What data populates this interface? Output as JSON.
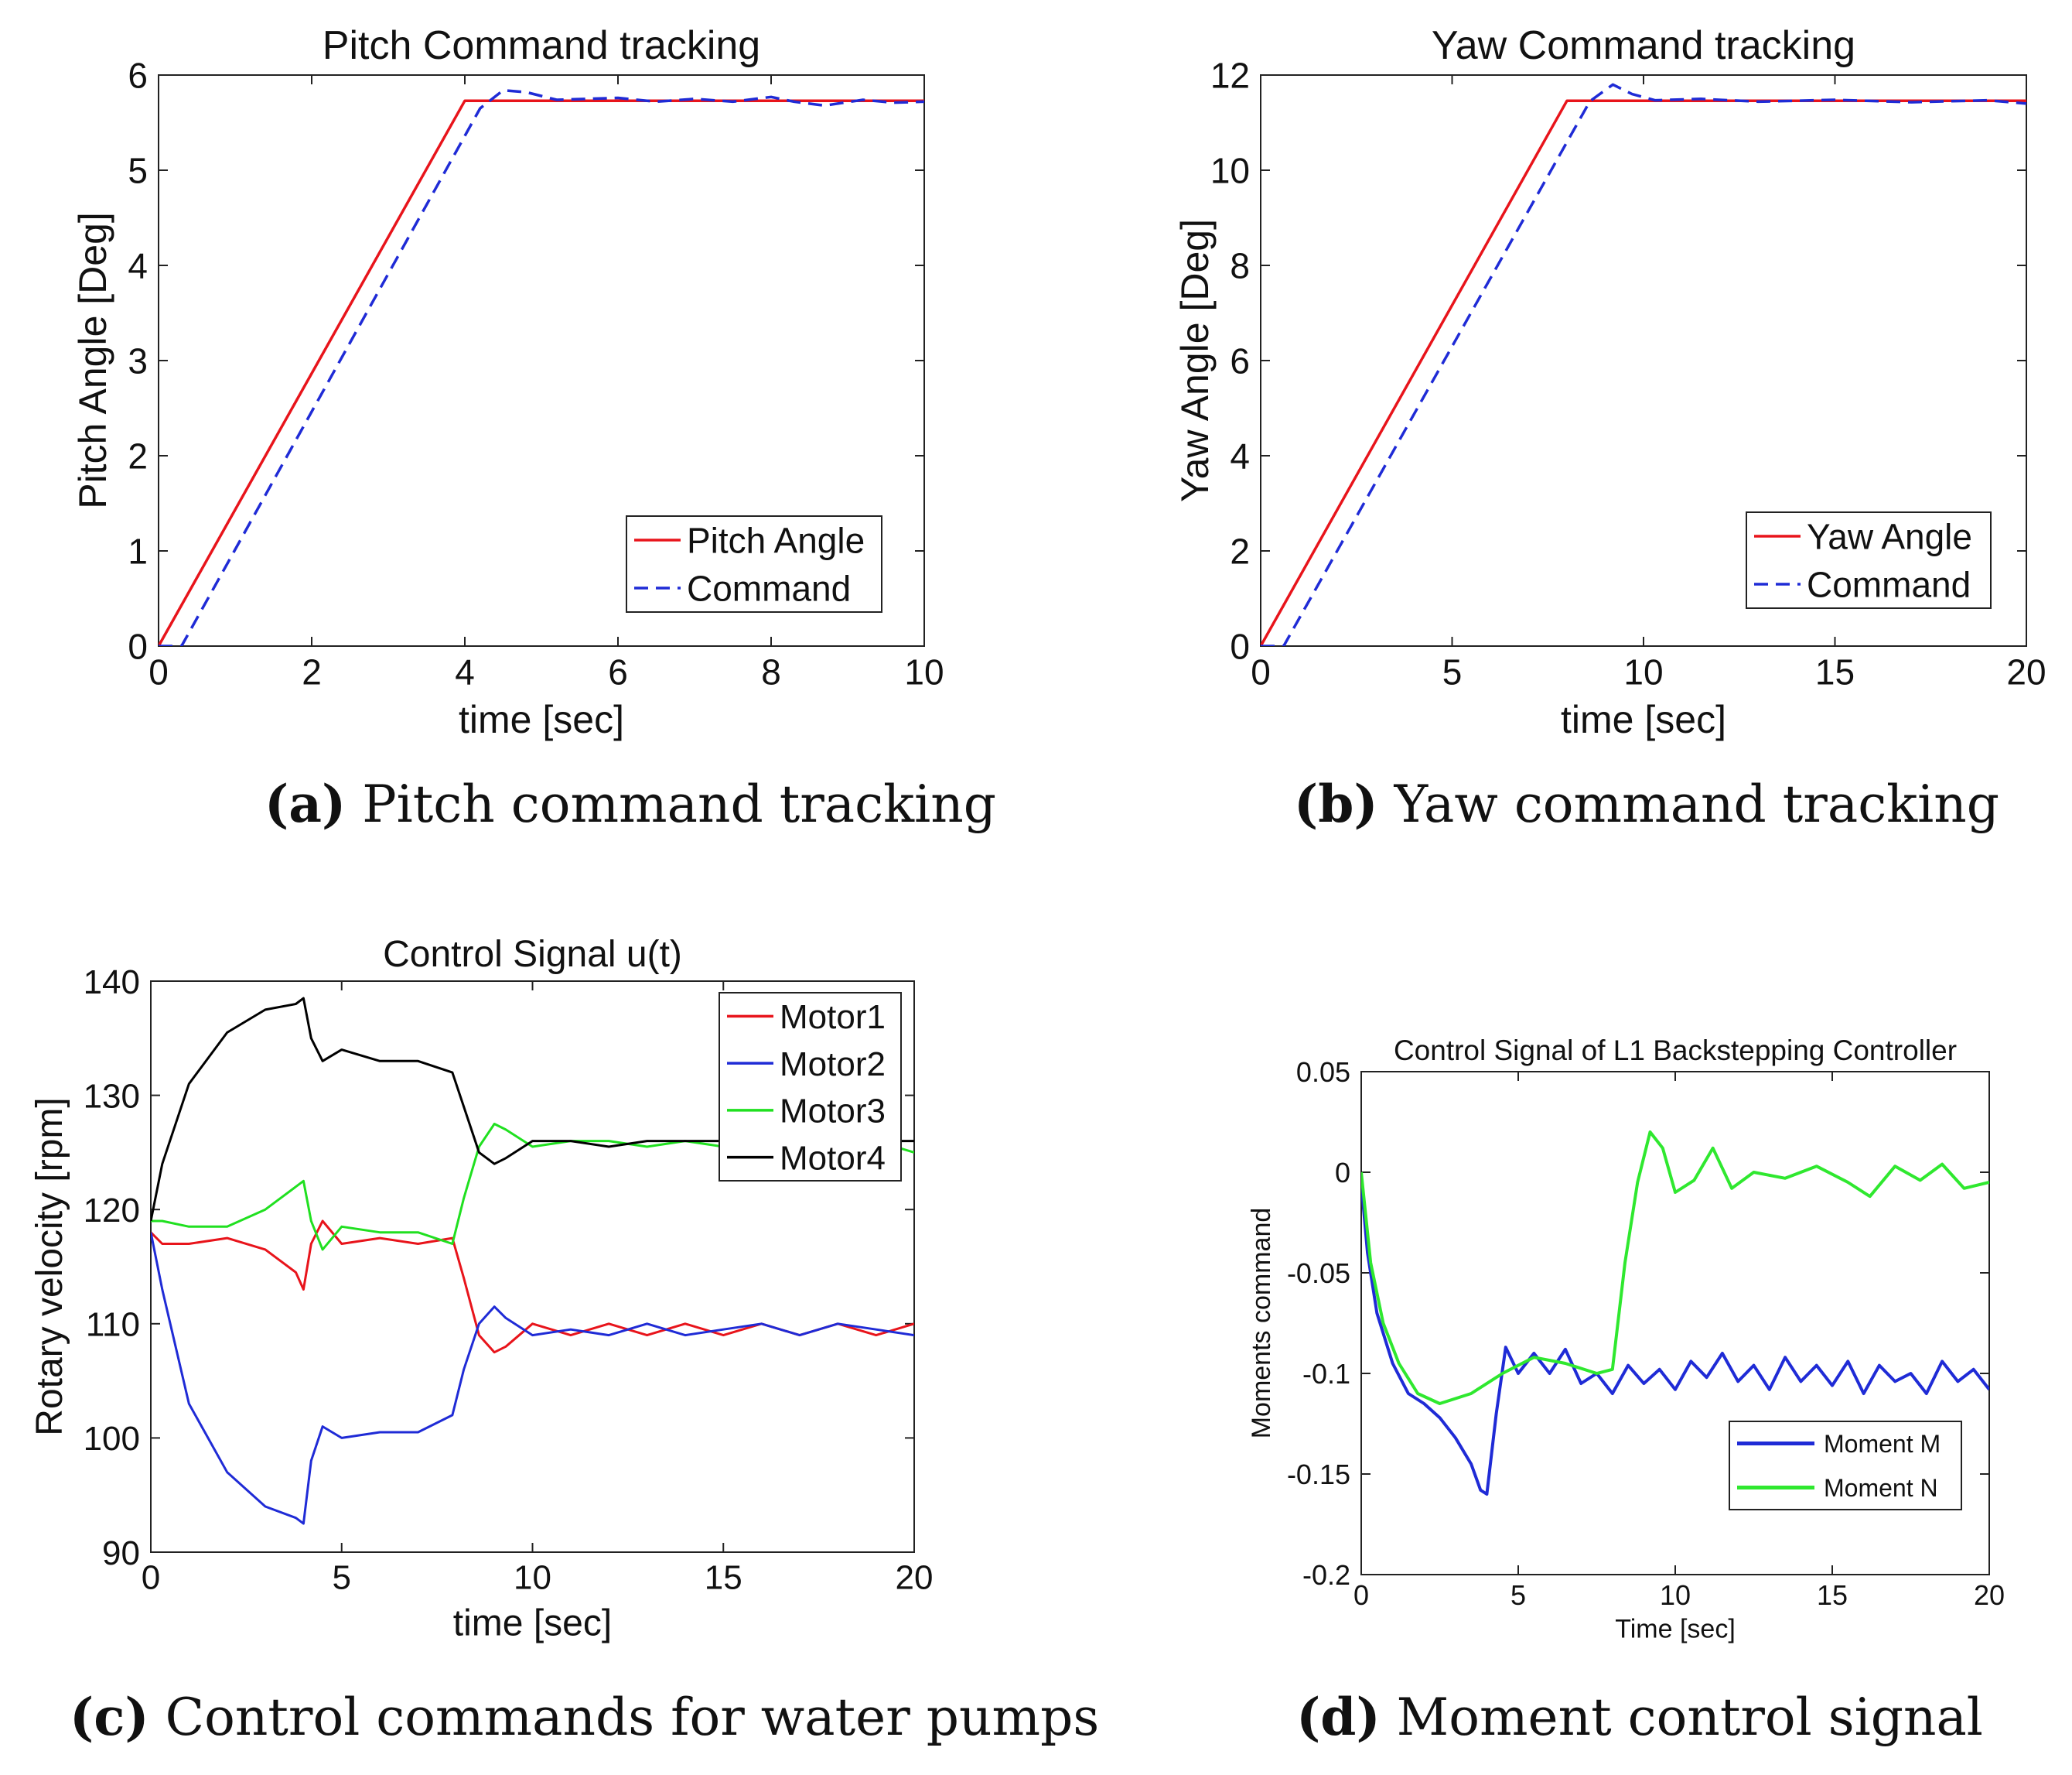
{
  "chart_data": [
    {
      "id": "a",
      "type": "line",
      "title": "Pitch Command tracking",
      "xlabel": "time [sec]",
      "ylabel": "Pitch Angle [Deg]",
      "xlim": [
        0,
        10
      ],
      "ylim": [
        0,
        6
      ],
      "xticks": [
        0,
        2,
        4,
        6,
        8,
        10
      ],
      "yticks": [
        0,
        1,
        2,
        3,
        4,
        5,
        6
      ],
      "xtick_labels": [
        "0",
        "2",
        "4",
        "6",
        "8",
        "10"
      ],
      "ytick_labels": [
        "0",
        "1",
        "2",
        "3",
        "4",
        "5",
        "6"
      ],
      "grid": false,
      "legend": "bottom-right",
      "caption_label": "(a)",
      "caption_text": "Pitch command tracking",
      "series": [
        {
          "name": "Pitch Angle",
          "color": "#e8141b",
          "style": "solid",
          "width": 3.5,
          "x": [
            0,
            4,
            10
          ],
          "y": [
            0,
            5.73,
            5.73
          ]
        },
        {
          "name": "Command",
          "color": "#1f2bd6",
          "style": "dashed",
          "width": 3.5,
          "x": [
            0,
            0.3,
            4.2,
            4.5,
            4.8,
            5.2,
            6.0,
            6.5,
            7.0,
            7.5,
            8.0,
            8.3,
            8.7,
            9.2,
            9.6,
            10.0
          ],
          "y": [
            0,
            0,
            5.65,
            5.84,
            5.82,
            5.74,
            5.76,
            5.72,
            5.75,
            5.72,
            5.77,
            5.72,
            5.68,
            5.74,
            5.71,
            5.72
          ]
        }
      ]
    },
    {
      "id": "b",
      "type": "line",
      "title": "Yaw Command tracking",
      "xlabel": "time [sec]",
      "ylabel": "Yaw Angle [Deg]",
      "xlim": [
        0,
        20
      ],
      "ylim": [
        0,
        12
      ],
      "xticks": [
        0,
        5,
        10,
        15,
        20
      ],
      "yticks": [
        0,
        2,
        4,
        6,
        8,
        10,
        12
      ],
      "xtick_labels": [
        "0",
        "5",
        "10",
        "15",
        "20"
      ],
      "ytick_labels": [
        "0",
        "2",
        "4",
        "6",
        "8",
        "10",
        "12"
      ],
      "grid": false,
      "legend": "bottom-right",
      "caption_label": "(b)",
      "caption_text": "Yaw command tracking",
      "series": [
        {
          "name": "Yaw Angle",
          "color": "#e8141b",
          "style": "solid",
          "width": 3.5,
          "x": [
            0,
            8,
            20
          ],
          "y": [
            0,
            11.46,
            11.46
          ]
        },
        {
          "name": "Command",
          "color": "#1f2bd6",
          "style": "dashed",
          "width": 3.5,
          "x": [
            0,
            0.6,
            8.6,
            9.2,
            9.7,
            10.3,
            11.5,
            13.0,
            15.0,
            17.0,
            19.0,
            20.0
          ],
          "y": [
            0,
            0,
            11.45,
            11.8,
            11.6,
            11.47,
            11.5,
            11.44,
            11.48,
            11.43,
            11.47,
            11.4
          ]
        }
      ]
    },
    {
      "id": "c",
      "type": "line",
      "title": "Control Signal u(t)",
      "xlabel": "time [sec]",
      "ylabel": "Rotary velocity [rpm]",
      "xlim": [
        0,
        20
      ],
      "ylim": [
        90,
        140
      ],
      "xticks": [
        0,
        5,
        10,
        15,
        20
      ],
      "yticks": [
        90,
        100,
        110,
        120,
        130,
        140
      ],
      "xtick_labels": [
        "0",
        "5",
        "10",
        "15",
        "20"
      ],
      "ytick_labels": [
        "90",
        "100",
        "110",
        "120",
        "130",
        "140"
      ],
      "grid": false,
      "legend": "top-right",
      "caption_label": "(c)",
      "caption_text": "Control commands for water pumps",
      "series": [
        {
          "name": "Motor1",
          "color": "#e8141b",
          "style": "solid",
          "width": 3,
          "x": [
            0,
            0.3,
            1,
            2,
            3,
            3.8,
            4.0,
            4.2,
            4.5,
            5,
            6,
            7,
            7.9,
            8.2,
            8.6,
            9.0,
            9.3,
            10,
            11,
            12,
            13,
            14,
            15,
            16,
            17,
            18,
            19,
            20
          ],
          "y": [
            118,
            117,
            117,
            117.5,
            116.5,
            114.5,
            113,
            117,
            119,
            117,
            117.5,
            117,
            117.5,
            114,
            109,
            107.5,
            108,
            110,
            109,
            110,
            109,
            110,
            109,
            110,
            109,
            110,
            109,
            110
          ]
        },
        {
          "name": "Motor2",
          "color": "#1f2bd6",
          "style": "solid",
          "width": 3,
          "x": [
            0,
            0.3,
            1,
            2,
            3,
            3.8,
            4.0,
            4.2,
            4.5,
            5,
            6,
            7,
            7.9,
            8.2,
            8.6,
            9.0,
            9.3,
            10,
            11,
            12,
            13,
            14,
            15,
            16,
            17,
            18,
            19,
            20
          ],
          "y": [
            118,
            113,
            103,
            97,
            94,
            93,
            92.5,
            98,
            101,
            100,
            100.5,
            100.5,
            102,
            106,
            110,
            111.5,
            110.5,
            109,
            109.5,
            109,
            110,
            109,
            109.5,
            110,
            109,
            110,
            109.5,
            109
          ]
        },
        {
          "name": "Motor3",
          "color": "#20e020",
          "style": "solid",
          "width": 3,
          "x": [
            0,
            0.3,
            1,
            2,
            3,
            3.8,
            4.0,
            4.2,
            4.5,
            5,
            6,
            7,
            7.9,
            8.2,
            8.6,
            9.0,
            9.3,
            10,
            11,
            12,
            13,
            14,
            15,
            16,
            17,
            18,
            19,
            20
          ],
          "y": [
            119,
            119,
            118.5,
            118.5,
            120,
            122,
            122.5,
            119,
            116.5,
            118.5,
            118,
            118,
            117,
            121,
            125.5,
            127.5,
            127,
            125.5,
            126,
            126,
            125.5,
            126,
            125.5,
            125.5,
            126,
            125.5,
            126,
            125
          ]
        },
        {
          "name": "Motor4",
          "color": "#000000",
          "style": "solid",
          "width": 3,
          "x": [
            0,
            0.3,
            1,
            2,
            3,
            3.8,
            4.0,
            4.2,
            4.5,
            5,
            6,
            7,
            7.9,
            8.2,
            8.6,
            9.0,
            9.3,
            10,
            11,
            12,
            13,
            14,
            15,
            16,
            17,
            18,
            19,
            20
          ],
          "y": [
            119,
            124,
            131,
            135.5,
            137.5,
            138,
            138.5,
            135,
            133,
            134,
            133,
            133,
            132,
            129,
            125,
            124,
            124.5,
            126,
            126,
            125.5,
            126,
            126,
            126,
            126,
            126,
            126,
            126,
            126
          ]
        }
      ]
    },
    {
      "id": "d",
      "type": "line",
      "title": "Control Signal of L1 Backstepping Controller",
      "xlabel": "Time [sec]",
      "ylabel": "Moments command",
      "xlim": [
        0,
        20
      ],
      "ylim": [
        -0.2,
        0.05
      ],
      "xticks": [
        0,
        5,
        10,
        15,
        20
      ],
      "yticks": [
        -0.2,
        -0.15,
        -0.1,
        -0.05,
        0,
        0.05
      ],
      "xtick_labels": [
        "0",
        "5",
        "10",
        "15",
        "20"
      ],
      "ytick_labels": [
        "-0.2",
        "-0.15",
        "-0.1",
        "-0.05",
        "0",
        "0.05"
      ],
      "grid": false,
      "legend": "bottom-right",
      "caption_label": "(d)",
      "caption_text": "Moment control signal",
      "series": [
        {
          "name": "Moment M",
          "color": "#1f2bd6",
          "style": "solid",
          "width": 4,
          "x": [
            0,
            0.2,
            0.5,
            1,
            1.5,
            2,
            2.5,
            3,
            3.5,
            3.8,
            4.0,
            4.3,
            4.6,
            5,
            5.5,
            6,
            6.5,
            7,
            7.5,
            8,
            8.5,
            9,
            9.5,
            10,
            10.5,
            11,
            11.5,
            12,
            12.5,
            13,
            13.5,
            14,
            14.5,
            15,
            15.5,
            16,
            16.5,
            17,
            17.5,
            18,
            18.5,
            19,
            19.5,
            20
          ],
          "y": [
            -0.005,
            -0.04,
            -0.07,
            -0.095,
            -0.11,
            -0.115,
            -0.122,
            -0.132,
            -0.145,
            -0.158,
            -0.16,
            -0.12,
            -0.087,
            -0.1,
            -0.09,
            -0.1,
            -0.088,
            -0.105,
            -0.1,
            -0.11,
            -0.096,
            -0.105,
            -0.098,
            -0.108,
            -0.094,
            -0.102,
            -0.09,
            -0.104,
            -0.096,
            -0.108,
            -0.092,
            -0.104,
            -0.096,
            -0.106,
            -0.094,
            -0.11,
            -0.096,
            -0.104,
            -0.1,
            -0.11,
            -0.094,
            -0.104,
            -0.098,
            -0.108
          ]
        },
        {
          "name": "Moment N",
          "color": "#2fe82f",
          "style": "solid",
          "width": 4,
          "x": [
            0,
            0.3,
            0.7,
            1.2,
            1.8,
            2.5,
            3.5,
            4.5,
            5.5,
            6.5,
            7.5,
            8.0,
            8.4,
            8.8,
            9.2,
            9.6,
            10.0,
            10.6,
            11.2,
            11.8,
            12.5,
            13.5,
            14.5,
            15.5,
            16.2,
            17.0,
            17.8,
            18.5,
            19.2,
            20.0
          ],
          "y": [
            0,
            -0.045,
            -0.075,
            -0.095,
            -0.11,
            -0.115,
            -0.11,
            -0.1,
            -0.092,
            -0.095,
            -0.1,
            -0.098,
            -0.045,
            -0.005,
            0.02,
            0.012,
            -0.01,
            -0.004,
            0.012,
            -0.008,
            0.0,
            -0.003,
            0.003,
            -0.005,
            -0.012,
            0.003,
            -0.004,
            0.004,
            -0.008,
            -0.005
          ]
        }
      ]
    }
  ]
}
